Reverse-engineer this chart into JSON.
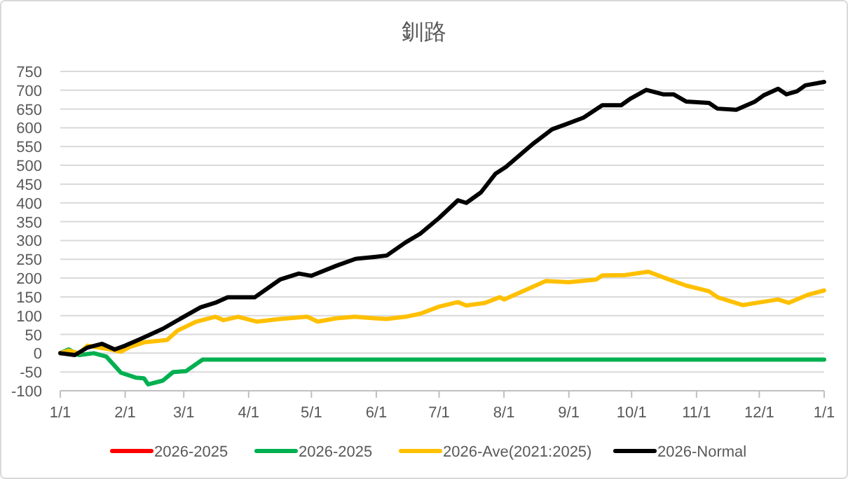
{
  "chart_data": {
    "type": "line",
    "title": "釧路",
    "xlim": [
      "2026-01-01",
      "2027-01-01"
    ],
    "xticks": [
      {
        "value": "2026-01-01",
        "label": "1/1"
      },
      {
        "value": "2026-02-01",
        "label": "2/1"
      },
      {
        "value": "2026-03-01",
        "label": "3/1"
      },
      {
        "value": "2026-04-01",
        "label": "4/1"
      },
      {
        "value": "2026-05-01",
        "label": "5/1"
      },
      {
        "value": "2026-06-01",
        "label": "6/1"
      },
      {
        "value": "2026-07-01",
        "label": "7/1"
      },
      {
        "value": "2026-08-01",
        "label": "8/1"
      },
      {
        "value": "2026-09-01",
        "label": "9/1"
      },
      {
        "value": "2026-10-01",
        "label": "10/1"
      },
      {
        "value": "2026-11-01",
        "label": "11/1"
      },
      {
        "value": "2026-12-01",
        "label": "12/1"
      },
      {
        "value": "2027-01-01",
        "label": "1/1"
      }
    ],
    "ylim": [
      -100,
      750
    ],
    "yticks": [
      -100,
      -50,
      0,
      50,
      100,
      150,
      200,
      250,
      300,
      350,
      400,
      450,
      500,
      550,
      600,
      650,
      700,
      750
    ],
    "grid": "y",
    "legend": "bottom",
    "line_style": "solid",
    "series": [
      {
        "name": "2026-2025",
        "color": "#ff0000"
      },
      {
        "name": "2026-2025",
        "color": "#00b050",
        "x": [
          "2026-01-01",
          "2026-01-05",
          "2026-01-10",
          "2026-01-17",
          "2026-01-23",
          "2026-01-30",
          "2026-02-06",
          "2026-02-10",
          "2026-02-12",
          "2026-02-19",
          "2026-02-24",
          "2026-03-02",
          "2026-03-10",
          "2026-06-22",
          "2027-01-01"
        ],
        "values": [
          0,
          10,
          -5,
          0,
          -9,
          -52,
          -65,
          -67,
          -83,
          -73,
          -50,
          -48,
          -17,
          -17,
          -17
        ]
      },
      {
        "name": "2026-Ave(2021:2025)",
        "color": "#ffc000",
        "x": [
          "2026-01-01",
          "2026-01-05",
          "2026-01-10",
          "2026-01-14",
          "2026-01-23",
          "2026-01-30",
          "2026-02-03",
          "2026-02-10",
          "2026-02-21",
          "2026-02-26",
          "2026-03-07",
          "2026-03-16",
          "2026-03-20",
          "2026-03-27",
          "2026-04-05",
          "2026-04-16",
          "2026-04-29",
          "2026-05-04",
          "2026-05-13",
          "2026-05-22",
          "2026-05-31",
          "2026-06-06",
          "2026-06-15",
          "2026-06-22",
          "2026-07-01",
          "2026-07-10",
          "2026-07-14",
          "2026-07-23",
          "2026-07-30",
          "2026-08-01",
          "2026-08-12",
          "2026-08-21",
          "2026-09-01",
          "2026-09-14",
          "2026-09-17",
          "2026-09-28",
          "2026-10-09",
          "2026-10-18",
          "2026-10-27",
          "2026-11-07",
          "2026-11-11",
          "2026-11-23",
          "2026-12-02",
          "2026-12-10",
          "2026-12-15",
          "2026-12-24",
          "2027-01-01"
        ],
        "values": [
          0,
          7,
          0,
          20,
          12,
          4,
          16,
          29,
          35,
          60,
          84,
          97,
          88,
          97,
          84,
          91,
          97,
          84,
          93,
          97,
          93,
          91,
          97,
          105,
          124,
          136,
          127,
          134,
          149,
          143,
          170,
          192,
          189,
          196,
          207,
          208,
          217,
          198,
          180,
          165,
          149,
          128,
          136,
          143,
          134,
          155,
          167
        ]
      },
      {
        "name": "2026-Normal",
        "color": "#000000",
        "x": [
          "2026-01-01",
          "2026-01-08",
          "2026-01-14",
          "2026-01-21",
          "2026-01-27",
          "2026-02-01",
          "2026-02-08",
          "2026-02-19",
          "2026-03-01",
          "2026-03-09",
          "2026-03-16",
          "2026-03-22",
          "2026-04-04",
          "2026-04-16",
          "2026-04-25",
          "2026-05-01",
          "2026-05-13",
          "2026-05-22",
          "2026-05-31",
          "2026-06-06",
          "2026-06-15",
          "2026-06-22",
          "2026-07-01",
          "2026-07-10",
          "2026-07-14",
          "2026-07-21",
          "2026-07-28",
          "2026-08-02",
          "2026-08-15",
          "2026-08-24",
          "2026-08-30",
          "2026-09-08",
          "2026-09-17",
          "2026-09-26",
          "2026-09-30",
          "2026-10-08",
          "2026-10-16",
          "2026-10-21",
          "2026-10-27",
          "2026-11-07",
          "2026-11-11",
          "2026-11-20",
          "2026-11-29",
          "2026-12-03",
          "2026-12-10",
          "2026-12-14",
          "2026-12-19",
          "2026-12-23",
          "2027-01-01"
        ],
        "values": [
          0,
          -5,
          15,
          25,
          10,
          20,
          37,
          65,
          97,
          122,
          134,
          149,
          149,
          196,
          212,
          206,
          233,
          251,
          256,
          260,
          295,
          318,
          360,
          407,
          400,
          428,
          478,
          496,
          558,
          596,
          608,
          627,
          660,
          660,
          676,
          701,
          689,
          689,
          670,
          666,
          651,
          648,
          670,
          686,
          704,
          689,
          697,
          713,
          722
        ]
      }
    ]
  }
}
